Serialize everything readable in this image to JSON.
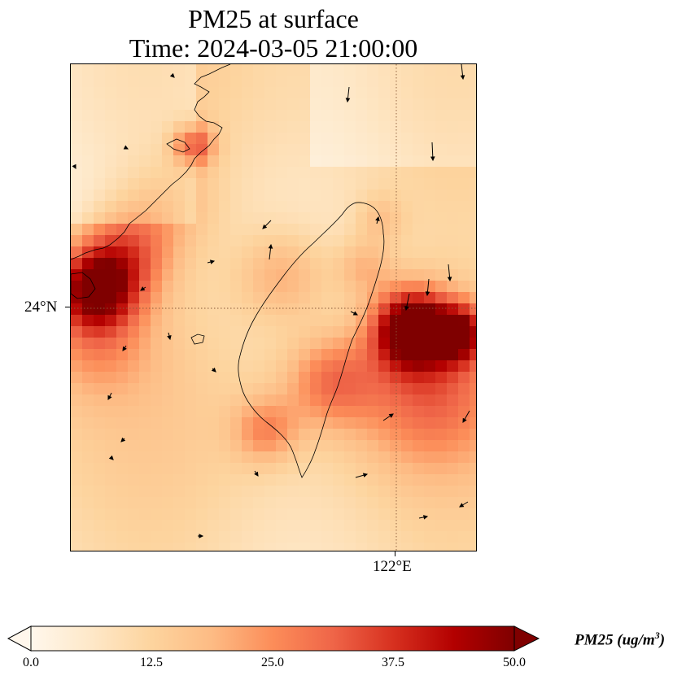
{
  "title": {
    "line1": "PM25 at surface",
    "line2": "Time: 2024-03-05 21:00:00"
  },
  "map": {
    "lat_label": "24°N",
    "lon_label": "122°E",
    "colormap": [
      "#fff7ec",
      "#fee8c8",
      "#fdd49e",
      "#fdbb84",
      "#fc8d59",
      "#ef6548",
      "#d7301f",
      "#b30000",
      "#7f0000"
    ]
  },
  "colorbar": {
    "ticks": [
      "0.0",
      "12.5",
      "25.0",
      "37.5",
      "50.0"
    ],
    "label": "PM25 (ug/m",
    "label_sup": "3",
    "label_close": ")",
    "min": 0,
    "max": 50,
    "extend": "both"
  }
}
